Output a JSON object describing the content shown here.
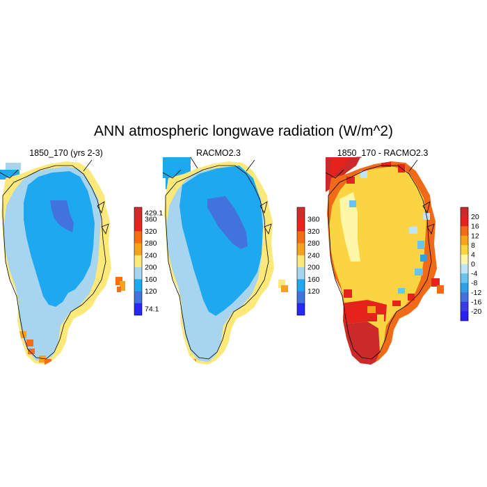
{
  "figure": {
    "title": "ANN atmospheric longwave radiation (W/m^2)"
  },
  "panels": [
    {
      "title": "1850_170 (yrs 2-3)",
      "colorbar": {
        "labels": [
          "429.1",
          "360",
          "320",
          "280",
          "240",
          "200",
          "160",
          "120",
          "74.1"
        ],
        "colors": [
          "#d22b2b",
          "#e6261e",
          "#f46f13",
          "#f7a21b",
          "#fce97a",
          "#a7d5ef",
          "#1ea8ef",
          "#4272dc",
          "#2828f0"
        ]
      }
    },
    {
      "title": "RACMO2.3",
      "colorbar": {
        "labels": [
          "360",
          "320",
          "280",
          "240",
          "200",
          "160",
          "120"
        ],
        "colors": [
          "#d22b2b",
          "#e6261e",
          "#f46f13",
          "#f7a21b",
          "#fce97a",
          "#a7d5ef",
          "#1ea8ef",
          "#4272dc",
          "#2828f0"
        ]
      }
    },
    {
      "title": "1850_170 - RACMO2.3",
      "colorbar": {
        "labels": [
          "20",
          "16",
          "12",
          "8",
          "4",
          "0",
          "-4",
          "-8",
          "-12",
          "-16",
          "-20"
        ],
        "colors": [
          "#cc2a2a",
          "#e3231c",
          "#f06a17",
          "#f6a41c",
          "#fad441",
          "#fff7a8",
          "#bfe4f4",
          "#69c3ef",
          "#2e9fe9",
          "#4470db",
          "#3b3be6",
          "#2a20f0"
        ]
      }
    }
  ]
}
